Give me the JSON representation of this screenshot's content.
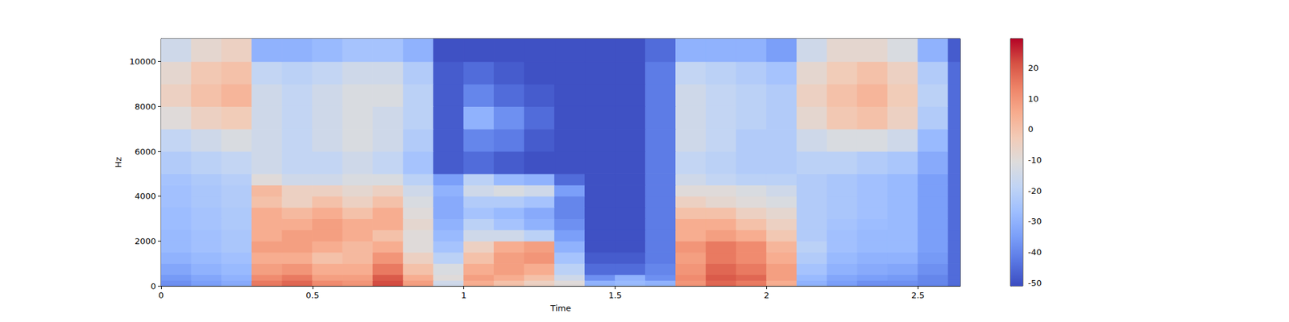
{
  "chart_data": {
    "type": "heatmap",
    "xlabel": "Time",
    "ylabel": "Hz",
    "color": "coolwarm",
    "xlim": [
      0,
      2.64
    ],
    "xticks": [
      0,
      0.5,
      1,
      1.5,
      2,
      2.5
    ],
    "ylim": [
      0,
      11025
    ],
    "yticks": [
      0,
      2000,
      4000,
      6000,
      8000,
      10000
    ],
    "x_edges": [
      0,
      0.1,
      0.2,
      0.3,
      0.4,
      0.5,
      0.6,
      0.7,
      0.8,
      0.9,
      1.0,
      1.1,
      1.2,
      1.3,
      1.4,
      1.5,
      1.6,
      1.7,
      1.8,
      1.9,
      2.0,
      2.1,
      2.2,
      2.3,
      2.4,
      2.5,
      2.6,
      2.64
    ],
    "y_edges": [
      0,
      250,
      500,
      1000,
      1500,
      2000,
      2500,
      3000,
      3500,
      4000,
      4500,
      5000,
      6000,
      7000,
      8000,
      9000,
      10000,
      11025
    ],
    "cells": [
      [
        -38,
        -35,
        -32,
        15,
        18,
        12,
        10,
        22,
        8,
        -15,
        5,
        0,
        -5,
        -10,
        -30,
        -28,
        -30,
        10,
        18,
        15,
        5,
        -30,
        -35,
        -38,
        -38,
        -40,
        -45
      ],
      [
        -36,
        -33,
        -30,
        12,
        15,
        8,
        8,
        20,
        5,
        -10,
        8,
        5,
        0,
        -15,
        -38,
        -30,
        -38,
        12,
        20,
        18,
        8,
        -28,
        -33,
        -35,
        -36,
        -40,
        -45
      ],
      [
        -33,
        -30,
        -28,
        8,
        10,
        5,
        5,
        15,
        0,
        -12,
        5,
        8,
        5,
        -20,
        -45,
        -45,
        -40,
        10,
        18,
        15,
        8,
        -25,
        -30,
        -32,
        -33,
        -38,
        -45
      ],
      [
        -30,
        -28,
        -26,
        5,
        5,
        0,
        2,
        10,
        -5,
        -20,
        0,
        8,
        10,
        -25,
        -48,
        -48,
        -42,
        8,
        15,
        12,
        5,
        -22,
        -28,
        -30,
        -30,
        -36,
        -45
      ],
      [
        -28,
        -26,
        -24,
        8,
        8,
        5,
        2,
        5,
        -10,
        -25,
        -5,
        5,
        8,
        -30,
        -50,
        -50,
        -42,
        10,
        15,
        12,
        3,
        -20,
        -26,
        -28,
        -28,
        -35,
        -45
      ],
      [
        -28,
        -26,
        -24,
        5,
        8,
        8,
        5,
        0,
        -10,
        -28,
        -15,
        -15,
        -20,
        -35,
        -50,
        -50,
        -42,
        5,
        8,
        5,
        -2,
        -22,
        -26,
        -28,
        -28,
        -35,
        -45
      ],
      [
        -27,
        -25,
        -23,
        5,
        5,
        8,
        5,
        5,
        -8,
        -30,
        -20,
        -25,
        -30,
        -38,
        -50,
        -50,
        -42,
        5,
        5,
        0,
        -5,
        -22,
        -25,
        -27,
        -28,
        -35,
        -45
      ],
      [
        -27,
        -25,
        -23,
        5,
        2,
        5,
        0,
        5,
        -10,
        -32,
        -25,
        -28,
        -32,
        -40,
        -50,
        -50,
        -42,
        0,
        0,
        -5,
        -8,
        -22,
        -24,
        -26,
        -28,
        -35,
        -45
      ],
      [
        -26,
        -24,
        -22,
        0,
        -5,
        0,
        -5,
        0,
        -12,
        -32,
        -22,
        -22,
        -25,
        -40,
        -50,
        -50,
        -42,
        -5,
        -8,
        -10,
        -12,
        -22,
        -24,
        -26,
        -28,
        -35,
        -45
      ],
      [
        -26,
        -24,
        -22,
        2,
        -5,
        -5,
        -8,
        -5,
        -15,
        -30,
        -15,
        -12,
        -15,
        -35,
        -50,
        -50,
        -42,
        -10,
        -10,
        -12,
        -15,
        -22,
        -24,
        -26,
        -28,
        -35,
        -45
      ],
      [
        -25,
        -23,
        -21,
        -10,
        -15,
        -15,
        -12,
        -12,
        -20,
        -35,
        -20,
        -28,
        -30,
        -45,
        -50,
        -50,
        -42,
        -15,
        -18,
        -20,
        -20,
        -22,
        -24,
        -26,
        -28,
        -35,
        -45
      ],
      [
        -22,
        -20,
        -18,
        -15,
        -18,
        -18,
        -15,
        -18,
        -25,
        -48,
        -45,
        -48,
        -50,
        -50,
        -50,
        -50,
        -42,
        -18,
        -20,
        -22,
        -22,
        -20,
        -20,
        -22,
        -24,
        -32,
        -45
      ],
      [
        -18,
        -15,
        -12,
        -15,
        -18,
        -15,
        -12,
        -15,
        -22,
        -48,
        -40,
        -42,
        -48,
        -50,
        -50,
        -50,
        -42,
        -15,
        -18,
        -22,
        -22,
        -15,
        -12,
        -12,
        -15,
        -28,
        -45
      ],
      [
        -10,
        -5,
        -3,
        -15,
        -18,
        -15,
        -12,
        -15,
        -20,
        -48,
        -30,
        -38,
        -45,
        -50,
        -50,
        -50,
        -42,
        -15,
        -18,
        -20,
        -22,
        -8,
        -2,
        0,
        -5,
        -22,
        -45
      ],
      [
        -5,
        0,
        3,
        -15,
        -18,
        -15,
        -12,
        -12,
        -20,
        -48,
        -40,
        -45,
        -48,
        -50,
        -50,
        -50,
        -42,
        -15,
        -18,
        -20,
        -22,
        -5,
        0,
        3,
        -3,
        -20,
        -45
      ],
      [
        -8,
        -2,
        0,
        -18,
        -20,
        -18,
        -15,
        -15,
        -22,
        -48,
        -45,
        -48,
        -50,
        -50,
        -50,
        -50,
        -42,
        -18,
        -20,
        -22,
        -25,
        -8,
        -3,
        0,
        -5,
        -22,
        -45
      ],
      [
        -15,
        -8,
        -5,
        -30,
        -30,
        -28,
        -25,
        -25,
        -30,
        -50,
        -50,
        -50,
        -50,
        -50,
        -50,
        -50,
        -45,
        -30,
        -30,
        -30,
        -35,
        -15,
        -8,
        -8,
        -12,
        -30,
        -48
      ]
    ],
    "colorbar": {
      "range": [
        -51,
        29.5
      ],
      "ticks": [
        -50,
        -40,
        -30,
        -20,
        -10,
        0,
        10,
        20
      ]
    }
  }
}
